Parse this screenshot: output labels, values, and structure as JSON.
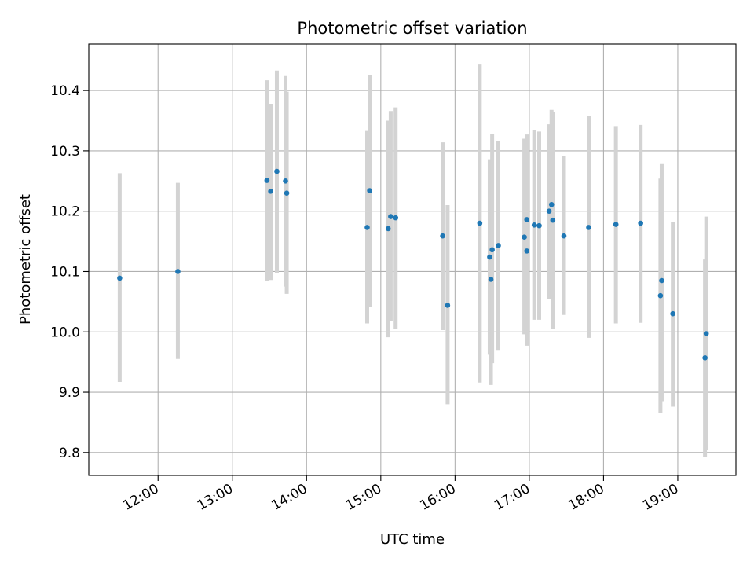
{
  "chart_data": {
    "type": "scatter",
    "title": "Photometric offset variation",
    "xlabel": "UTC time",
    "ylabel": "Photometric offset",
    "x_unit": "hours UTC",
    "xlim": [
      "11:04",
      "19:47"
    ],
    "ylim": [
      9.762,
      10.477
    ],
    "x_ticks": [
      "12:00",
      "13:00",
      "14:00",
      "15:00",
      "16:00",
      "17:00",
      "18:00",
      "19:00"
    ],
    "y_ticks": [
      9.8,
      9.9,
      10.0,
      10.1,
      10.2,
      10.3,
      10.4
    ],
    "grid": true,
    "legend": "none",
    "colors": {
      "marker": "#1f77b4",
      "error_bar": "#d3d3d3",
      "grid": "#b0b0b0"
    },
    "points": [
      {
        "time": "11:29",
        "y": 10.089,
        "ylo": 9.917,
        "yhi": 10.263
      },
      {
        "time": "12:16",
        "y": 10.1,
        "ylo": 9.955,
        "yhi": 10.247
      },
      {
        "time": "13:28",
        "y": 10.251,
        "ylo": 10.085,
        "yhi": 10.417
      },
      {
        "time": "13:31",
        "y": 10.233,
        "ylo": 10.086,
        "yhi": 10.378
      },
      {
        "time": "13:36",
        "y": 10.266,
        "ylo": 10.098,
        "yhi": 10.433
      },
      {
        "time": "13:43",
        "y": 10.25,
        "ylo": 10.075,
        "yhi": 10.424
      },
      {
        "time": "13:44",
        "y": 10.23,
        "ylo": 10.063,
        "yhi": 10.398
      },
      {
        "time": "14:49",
        "y": 10.173,
        "ylo": 10.014,
        "yhi": 10.333
      },
      {
        "time": "14:51",
        "y": 10.234,
        "ylo": 10.042,
        "yhi": 10.425
      },
      {
        "time": "15:06",
        "y": 10.171,
        "ylo": 9.991,
        "yhi": 10.35
      },
      {
        "time": "15:08",
        "y": 10.191,
        "ylo": 10.018,
        "yhi": 10.366
      },
      {
        "time": "15:12",
        "y": 10.189,
        "ylo": 10.005,
        "yhi": 10.372
      },
      {
        "time": "15:50",
        "y": 10.159,
        "ylo": 10.003,
        "yhi": 10.314
      },
      {
        "time": "15:54",
        "y": 10.044,
        "ylo": 9.88,
        "yhi": 10.21
      },
      {
        "time": "16:20",
        "y": 10.18,
        "ylo": 9.916,
        "yhi": 10.443
      },
      {
        "time": "16:28",
        "y": 10.124,
        "ylo": 9.962,
        "yhi": 10.286
      },
      {
        "time": "16:29",
        "y": 10.087,
        "ylo": 9.912,
        "yhi": 10.262
      },
      {
        "time": "16:30",
        "y": 10.136,
        "ylo": 9.948,
        "yhi": 10.328
      },
      {
        "time": "16:35",
        "y": 10.143,
        "ylo": 9.97,
        "yhi": 10.316
      },
      {
        "time": "16:56",
        "y": 10.157,
        "ylo": 9.996,
        "yhi": 10.32
      },
      {
        "time": "16:58",
        "y": 10.134,
        "ylo": 9.977,
        "yhi": 10.292
      },
      {
        "time": "16:58",
        "y": 10.186,
        "ylo": 10.045,
        "yhi": 10.327
      },
      {
        "time": "17:04",
        "y": 10.177,
        "ylo": 10.02,
        "yhi": 10.334
      },
      {
        "time": "17:08",
        "y": 10.176,
        "ylo": 10.02,
        "yhi": 10.332
      },
      {
        "time": "17:16",
        "y": 10.2,
        "ylo": 10.054,
        "yhi": 10.344
      },
      {
        "time": "17:18",
        "y": 10.211,
        "ylo": 10.057,
        "yhi": 10.368
      },
      {
        "time": "17:19",
        "y": 10.185,
        "ylo": 10.005,
        "yhi": 10.364
      },
      {
        "time": "17:28",
        "y": 10.159,
        "ylo": 10.028,
        "yhi": 10.291
      },
      {
        "time": "17:48",
        "y": 10.173,
        "ylo": 9.99,
        "yhi": 10.358
      },
      {
        "time": "18:10",
        "y": 10.178,
        "ylo": 10.014,
        "yhi": 10.341
      },
      {
        "time": "18:30",
        "y": 10.18,
        "ylo": 10.015,
        "yhi": 10.343
      },
      {
        "time": "18:46",
        "y": 10.06,
        "ylo": 9.865,
        "yhi": 10.254
      },
      {
        "time": "18:47",
        "y": 10.085,
        "ylo": 9.885,
        "yhi": 10.278
      },
      {
        "time": "18:56",
        "y": 10.03,
        "ylo": 9.876,
        "yhi": 10.182
      },
      {
        "time": "19:22",
        "y": 9.957,
        "ylo": 9.792,
        "yhi": 10.12
      },
      {
        "time": "19:23",
        "y": 9.997,
        "ylo": 9.805,
        "yhi": 10.191
      }
    ]
  }
}
